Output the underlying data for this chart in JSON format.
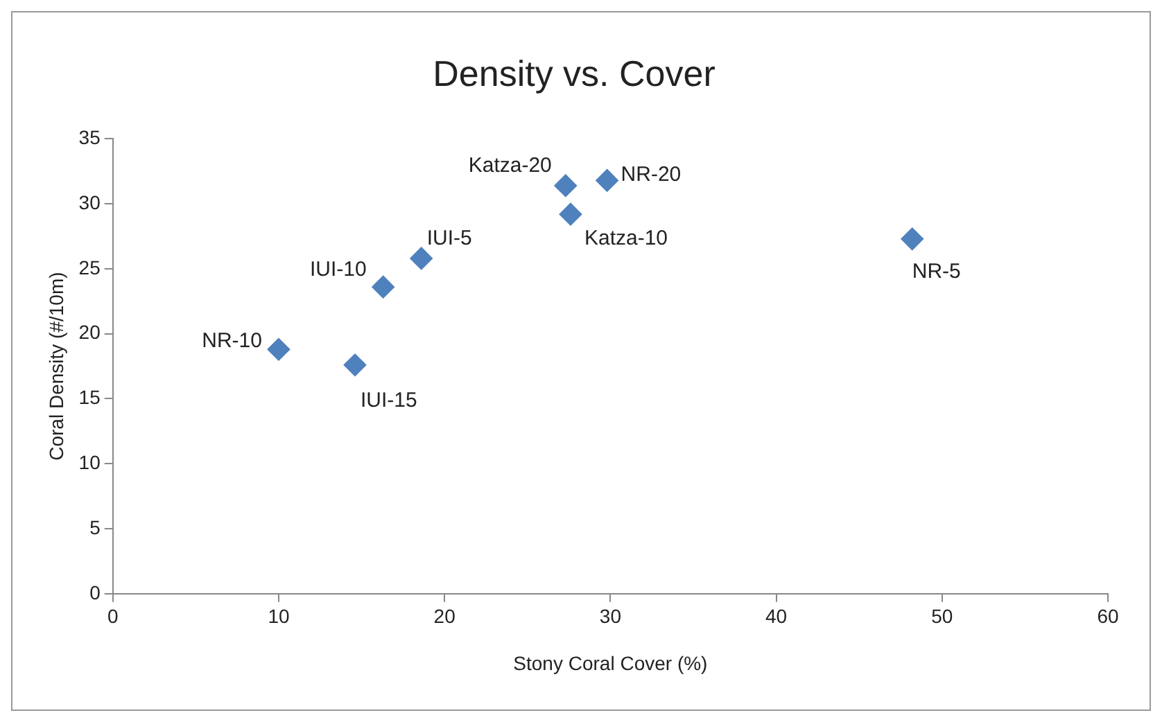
{
  "chart_data": {
    "type": "scatter",
    "title": "Density vs. Cover",
    "xlabel": "Stony Coral Cover (%)",
    "ylabel": "Coral Density (#/10m)",
    "x": [
      10,
      14.6,
      16.3,
      18.6,
      27.3,
      27.6,
      29.8,
      48.2
    ],
    "series": [
      {
        "color": "#4f81bd",
        "values": [
          18.8,
          17.6,
          23.6,
          25.8,
          31.4,
          29.2,
          31.8,
          27.3
        ]
      }
    ],
    "xlim": [
      0,
      60
    ],
    "xticks": [
      0,
      10,
      20,
      30,
      40,
      50,
      60
    ],
    "ylim": [
      0,
      35
    ],
    "yticks": [
      0,
      5,
      10,
      15,
      20,
      25,
      30,
      35
    ],
    "grid": false,
    "legend": false,
    "marker": "diamond",
    "annotations": [
      {
        "text": "NR-10",
        "x": 10,
        "y": 18.8
      },
      {
        "text": "IUI-15",
        "x": 14.6,
        "y": 17.6
      },
      {
        "text": "IUI-10",
        "x": 16.3,
        "y": 23.6
      },
      {
        "text": "IUI-5",
        "x": 18.6,
        "y": 25.8
      },
      {
        "text": "Katza-20",
        "x": 27.3,
        "y": 31.4
      },
      {
        "text": "Katza-10",
        "x": 27.6,
        "y": 29.2
      },
      {
        "text": "NR-20",
        "x": 29.8,
        "y": 31.8
      },
      {
        "text": "NR-5",
        "x": 48.2,
        "y": 27.3
      }
    ]
  }
}
